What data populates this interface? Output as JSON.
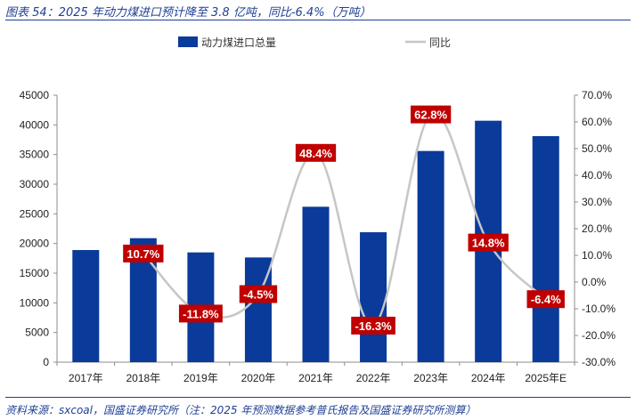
{
  "figure": {
    "title": "图表 54：2025 年动力煤进口预计降至 3.8 亿吨，同比-6.4%（万吨）",
    "source": "资料来源：sxcoal，国盛证券研究所（注：2025 年预测数据参考普氏报告及国盛证券研究所测算）"
  },
  "colors": {
    "bar": "#0a3a9a",
    "line": "#c6c6c6",
    "label_bg": "#c00000",
    "text_blue": "#1f3f93"
  },
  "chart_data": {
    "type": "bar",
    "categories": [
      "2017年",
      "2018年",
      "2019年",
      "2020年",
      "2021年",
      "2022年",
      "2023年",
      "2024年",
      "2025年E"
    ],
    "series": [
      {
        "name": "动力煤进口总量",
        "type": "bar",
        "axis": "left",
        "values": [
          18900,
          20900,
          18500,
          17650,
          26200,
          21900,
          35600,
          40700,
          38100
        ]
      },
      {
        "name": "同比",
        "type": "line",
        "axis": "right",
        "values": [
          null,
          10.7,
          -11.8,
          -4.5,
          48.4,
          -16.3,
          62.8,
          14.8,
          -6.4
        ]
      }
    ],
    "data_labels": [
      "",
      "10.7%",
      "-11.8%",
      "-4.5%",
      "48.4%",
      "-16.3%",
      "62.8%",
      "14.8%",
      "-6.4%"
    ],
    "y_left": {
      "min": 0,
      "max": 45000,
      "step": 5000,
      "ticks": [
        "0",
        "5000",
        "10000",
        "15000",
        "20000",
        "25000",
        "30000",
        "35000",
        "40000",
        "45000"
      ]
    },
    "y_right": {
      "min": -30,
      "max": 70,
      "step": 10,
      "ticks": [
        "-30.0%",
        "-20.0%",
        "-10.0%",
        "0.0%",
        "10.0%",
        "20.0%",
        "30.0%",
        "40.0%",
        "50.0%",
        "60.0%",
        "70.0%"
      ]
    },
    "legend": {
      "position": "top"
    },
    "grid": false
  }
}
